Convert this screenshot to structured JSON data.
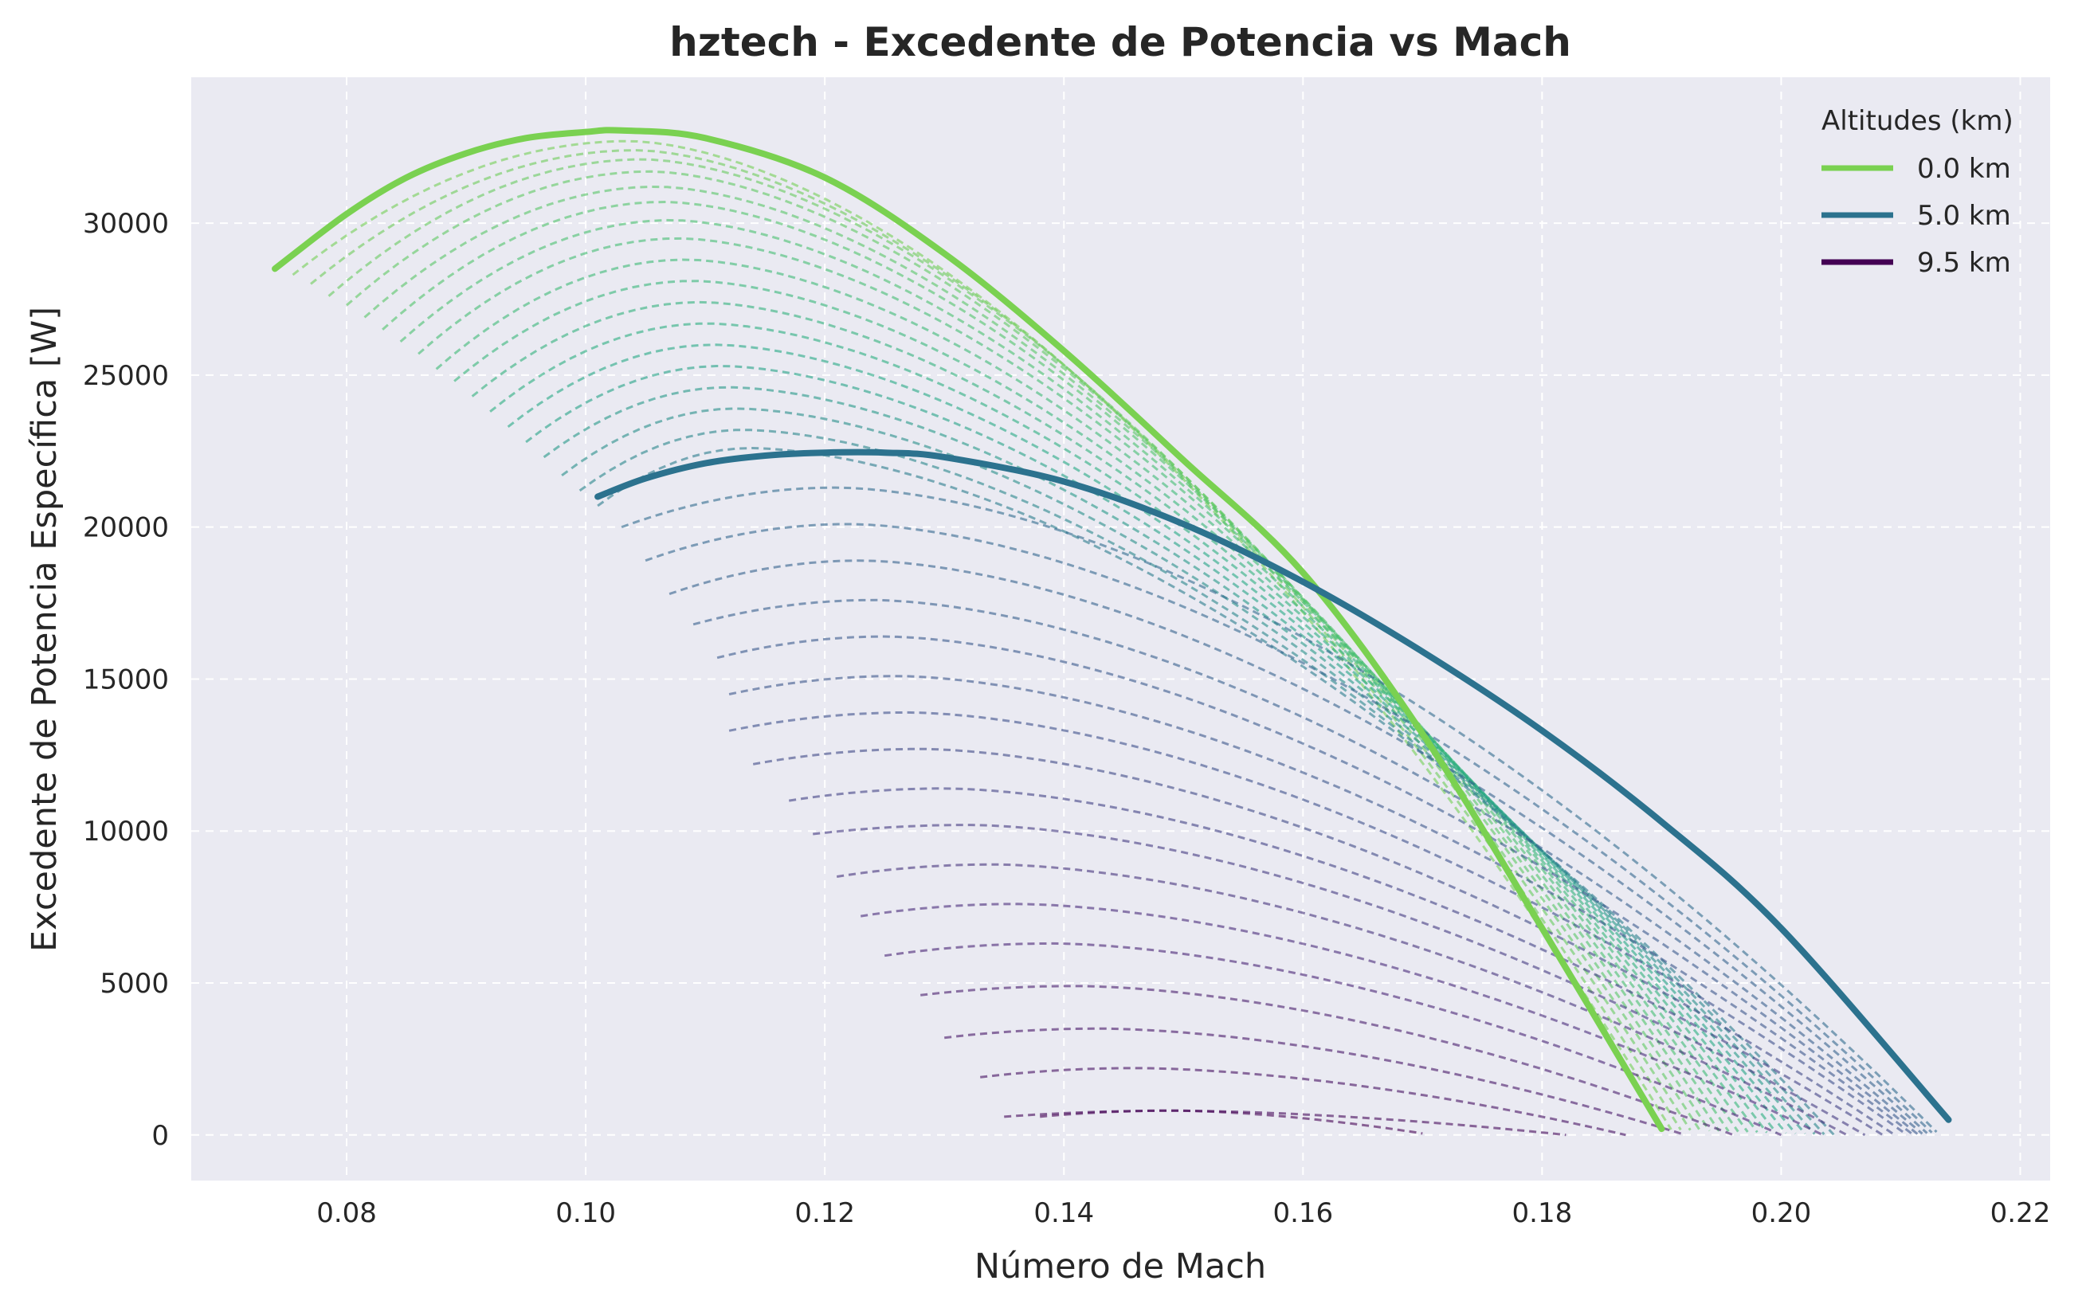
{
  "chart_data": {
    "type": "line",
    "title": "hztech - Excedente de Potencia vs Mach",
    "xlabel": "Número de Mach",
    "ylabel": "Excedente de Potencia Específica [W]",
    "xlim": [
      0.067,
      0.2225
    ],
    "ylim": [
      -1500,
      34800
    ],
    "xticks": [
      0.08,
      0.1,
      0.12,
      0.14,
      0.16,
      0.18,
      0.2,
      0.22
    ],
    "xtick_labels": [
      "0.08",
      "0.10",
      "0.12",
      "0.14",
      "0.16",
      "0.18",
      "0.20",
      "0.22"
    ],
    "yticks": [
      0,
      5000,
      10000,
      15000,
      20000,
      25000,
      30000
    ],
    "ytick_labels": [
      "0",
      "5000",
      "10000",
      "15000",
      "20000",
      "25000",
      "30000"
    ],
    "grid": true,
    "grid_style": "dashed",
    "background_color": "#eaeaf2",
    "legend": {
      "title": "Altitudes (km)",
      "placement": "top-right",
      "entries": [
        {
          "label": "0.0 km",
          "color": "#7ad151"
        },
        {
          "label": "5.0 km",
          "color": "#2c728e"
        },
        {
          "label": "9.5 km",
          "color": "#440154"
        }
      ]
    },
    "highlighted_series": [
      {
        "name": "0.0 km",
        "altitude_km": 0.0,
        "color": "#7ad151",
        "style": "solid",
        "x": [
          0.074,
          0.08,
          0.085,
          0.09,
          0.095,
          0.1,
          0.103,
          0.11,
          0.12,
          0.13,
          0.14,
          0.15,
          0.16,
          0.17,
          0.18,
          0.19
        ],
        "y": [
          28500,
          30300,
          31500,
          32300,
          32800,
          33000,
          33050,
          32800,
          31500,
          29000,
          25800,
          22200,
          18500,
          13200,
          6800,
          200
        ]
      },
      {
        "name": "5.0 km",
        "altitude_km": 5.0,
        "color": "#2c728e",
        "style": "solid",
        "x": [
          0.101,
          0.105,
          0.11,
          0.115,
          0.12,
          0.125,
          0.13,
          0.14,
          0.15,
          0.16,
          0.17,
          0.18,
          0.19,
          0.2,
          0.214
        ],
        "y": [
          21000,
          21600,
          22100,
          22350,
          22450,
          22450,
          22300,
          21500,
          20100,
          18200,
          15900,
          13300,
          10300,
          6800,
          500
        ]
      }
    ],
    "dashed_series": [
      {
        "altitude_km": 0.25,
        "x_start": 0.0755,
        "x_end": 0.1908,
        "y_start": 28300,
        "y_peak": 32700,
        "x_peak": 0.1036,
        "y_end": 180
      },
      {
        "altitude_km": 0.5,
        "x_start": 0.077,
        "x_end": 0.1916,
        "y_start": 28000,
        "y_peak": 32400,
        "x_peak": 0.1042,
        "y_end": 170
      },
      {
        "altitude_km": 0.75,
        "x_start": 0.0785,
        "x_end": 0.1924,
        "y_start": 27600,
        "y_peak": 32100,
        "x_peak": 0.1048,
        "y_end": 160
      },
      {
        "altitude_km": 1.0,
        "x_start": 0.08,
        "x_end": 0.1932,
        "y_start": 27300,
        "y_peak": 31700,
        "x_peak": 0.1054,
        "y_end": 150
      },
      {
        "altitude_km": 1.25,
        "x_start": 0.0815,
        "x_end": 0.194,
        "y_start": 26900,
        "y_peak": 31200,
        "x_peak": 0.106,
        "y_end": 140
      },
      {
        "altitude_km": 1.5,
        "x_start": 0.083,
        "x_end": 0.1948,
        "y_start": 26500,
        "y_peak": 30700,
        "x_peak": 0.1066,
        "y_end": 130
      },
      {
        "altitude_km": 1.75,
        "x_start": 0.0845,
        "x_end": 0.1956,
        "y_start": 26100,
        "y_peak": 30100,
        "x_peak": 0.1072,
        "y_end": 120
      },
      {
        "altitude_km": 2.0,
        "x_start": 0.086,
        "x_end": 0.1964,
        "y_start": 25700,
        "y_peak": 29500,
        "x_peak": 0.1078,
        "y_end": 110
      },
      {
        "altitude_km": 2.25,
        "x_start": 0.0875,
        "x_end": 0.1972,
        "y_start": 25200,
        "y_peak": 28800,
        "x_peak": 0.1084,
        "y_end": 100
      },
      {
        "altitude_km": 2.5,
        "x_start": 0.089,
        "x_end": 0.198,
        "y_start": 24800,
        "y_peak": 28100,
        "x_peak": 0.109,
        "y_end": 90
      },
      {
        "altitude_km": 2.75,
        "x_start": 0.0905,
        "x_end": 0.1988,
        "y_start": 24300,
        "y_peak": 27400,
        "x_peak": 0.1096,
        "y_end": 80
      },
      {
        "altitude_km": 3.0,
        "x_start": 0.092,
        "x_end": 0.1996,
        "y_start": 23800,
        "y_peak": 26700,
        "x_peak": 0.1102,
        "y_end": 70
      },
      {
        "altitude_km": 3.25,
        "x_start": 0.0935,
        "x_end": 0.2004,
        "y_start": 23300,
        "y_peak": 26000,
        "x_peak": 0.1108,
        "y_end": 60
      },
      {
        "altitude_km": 3.5,
        "x_start": 0.095,
        "x_end": 0.2012,
        "y_start": 22800,
        "y_peak": 25300,
        "x_peak": 0.1114,
        "y_end": 50
      },
      {
        "altitude_km": 3.75,
        "x_start": 0.0965,
        "x_end": 0.202,
        "y_start": 22300,
        "y_peak": 24600,
        "x_peak": 0.112,
        "y_end": 40
      },
      {
        "altitude_km": 4.0,
        "x_start": 0.098,
        "x_end": 0.2028,
        "y_start": 21700,
        "y_peak": 23900,
        "x_peak": 0.1126,
        "y_end": 30
      },
      {
        "altitude_km": 4.25,
        "x_start": 0.0995,
        "x_end": 0.2036,
        "y_start": 21200,
        "y_peak": 23200,
        "x_peak": 0.1132,
        "y_end": 20
      },
      {
        "altitude_km": 4.5,
        "x_start": 0.101,
        "x_end": 0.2044,
        "y_start": 20700,
        "y_peak": 22600,
        "x_peak": 0.1138,
        "y_end": 10
      },
      {
        "altitude_km": 5.25,
        "x_start": 0.103,
        "x_end": 0.213,
        "y_start": 20000,
        "y_peak": 21300,
        "x_peak": 0.121,
        "y_end": 100
      },
      {
        "altitude_km": 5.5,
        "x_start": 0.105,
        "x_end": 0.2126,
        "y_start": 18900,
        "y_peak": 20100,
        "x_peak": 0.122,
        "y_end": 80
      },
      {
        "altitude_km": 5.75,
        "x_start": 0.107,
        "x_end": 0.2122,
        "y_start": 17800,
        "y_peak": 18900,
        "x_peak": 0.123,
        "y_end": 60
      },
      {
        "altitude_km": 6.0,
        "x_start": 0.109,
        "x_end": 0.2118,
        "y_start": 16800,
        "y_peak": 17600,
        "x_peak": 0.124,
        "y_end": 40
      },
      {
        "altitude_km": 6.25,
        "x_start": 0.111,
        "x_end": 0.2114,
        "y_start": 15700,
        "y_peak": 16400,
        "x_peak": 0.125,
        "y_end": 30
      },
      {
        "altitude_km": 6.5,
        "x_start": 0.112,
        "x_end": 0.211,
        "y_start": 14500,
        "y_peak": 15100,
        "x_peak": 0.126,
        "y_end": 20
      },
      {
        "altitude_km": 6.75,
        "x_start": 0.112,
        "x_end": 0.2105,
        "y_start": 13300,
        "y_peak": 13900,
        "x_peak": 0.127,
        "y_end": 10
      },
      {
        "altitude_km": 7.0,
        "x_start": 0.114,
        "x_end": 0.2095,
        "y_start": 12200,
        "y_peak": 12700,
        "x_peak": 0.128,
        "y_end": 0
      },
      {
        "altitude_km": 7.25,
        "x_start": 0.117,
        "x_end": 0.2085,
        "y_start": 11000,
        "y_peak": 11400,
        "x_peak": 0.13,
        "y_end": 0
      },
      {
        "altitude_km": 7.5,
        "x_start": 0.119,
        "x_end": 0.207,
        "y_start": 9900,
        "y_peak": 10200,
        "x_peak": 0.132,
        "y_end": 0
      },
      {
        "altitude_km": 7.75,
        "x_start": 0.121,
        "x_end": 0.2055,
        "y_start": 8500,
        "y_peak": 8900,
        "x_peak": 0.134,
        "y_end": 0
      },
      {
        "altitude_km": 8.0,
        "x_start": 0.123,
        "x_end": 0.2035,
        "y_start": 7200,
        "y_peak": 7600,
        "x_peak": 0.136,
        "y_end": 0
      },
      {
        "altitude_km": 8.25,
        "x_start": 0.125,
        "x_end": 0.2,
        "y_start": 5900,
        "y_peak": 6300,
        "x_peak": 0.139,
        "y_end": 0
      },
      {
        "altitude_km": 8.5,
        "x_start": 0.128,
        "x_end": 0.196,
        "y_start": 4600,
        "y_peak": 4900,
        "x_peak": 0.141,
        "y_end": 0
      },
      {
        "altitude_km": 8.75,
        "x_start": 0.13,
        "x_end": 0.192,
        "y_start": 3200,
        "y_peak": 3500,
        "x_peak": 0.143,
        "y_end": 0
      },
      {
        "altitude_km": 9.0,
        "x_start": 0.133,
        "x_end": 0.187,
        "y_start": 1900,
        "y_peak": 2200,
        "x_peak": 0.146,
        "y_end": 0
      },
      {
        "altitude_km": 9.25,
        "x_start": 0.135,
        "x_end": 0.182,
        "y_start": 600,
        "y_peak": 800,
        "x_peak": 0.149,
        "y_end": 0
      },
      {
        "altitude_km": 9.5,
        "x_start": 0.138,
        "x_end": 0.17,
        "y_start": 600,
        "y_peak": 800,
        "x_peak": 0.149,
        "y_end": 50
      }
    ]
  }
}
